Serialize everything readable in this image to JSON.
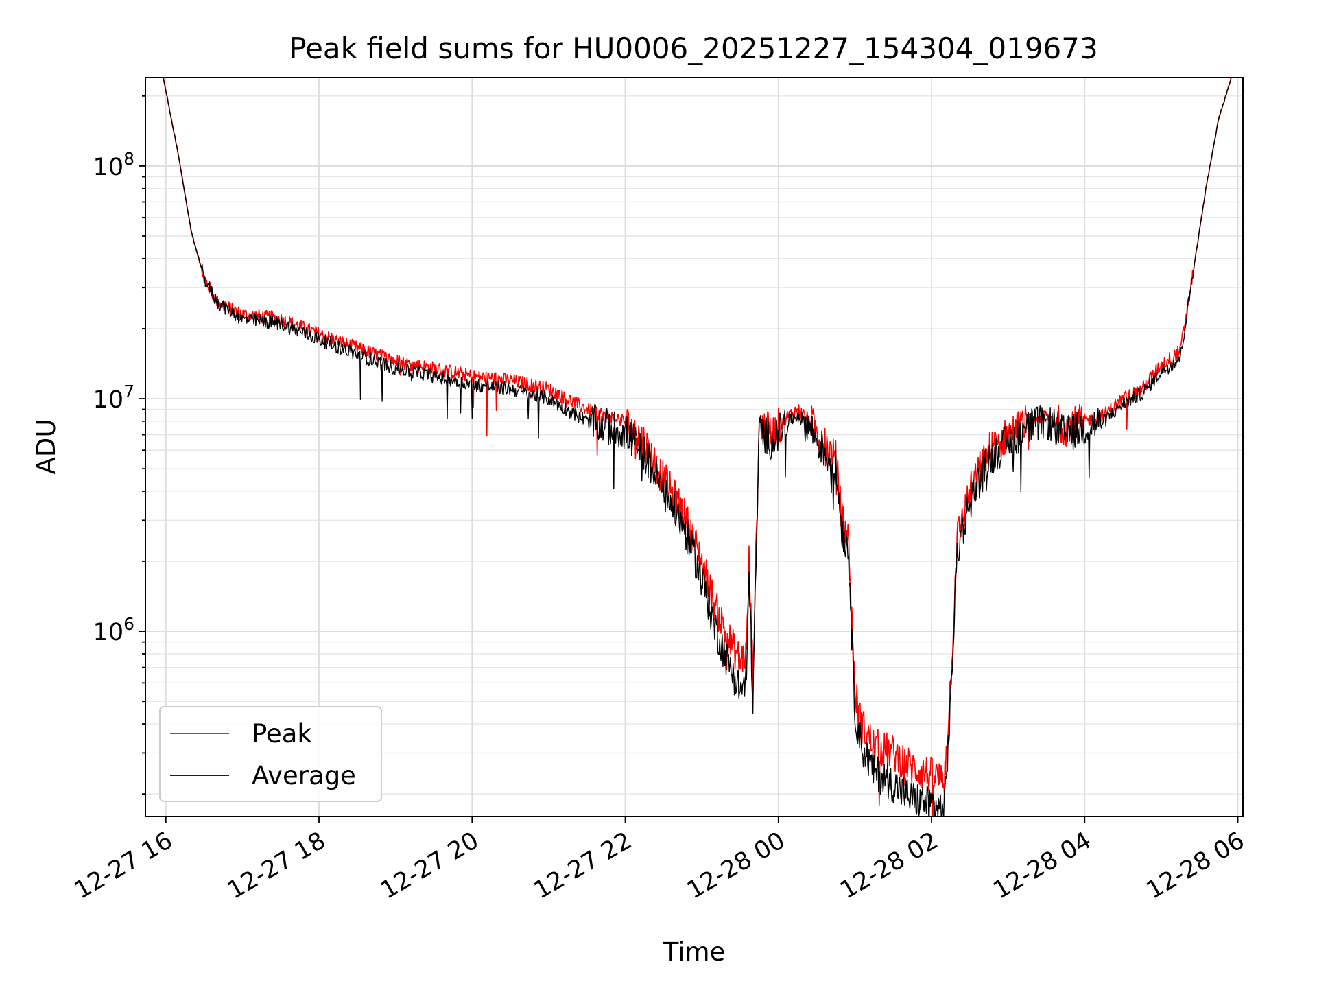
{
  "chart_data": {
    "type": "line",
    "title": "Peak field sums for HU0006_20251227_154304_019673",
    "xlabel": "Time",
    "ylabel": "ADU",
    "yscale": "log",
    "xlim": [
      "2025-12-27 15:44",
      "2025-12-28 06:04"
    ],
    "ylim": [
      160000,
      240000000
    ],
    "grid": true,
    "legend": "lower-left",
    "x_ticks": [
      "12-27 16",
      "12-27 18",
      "12-27 20",
      "12-27 22",
      "12-28 00",
      "12-28 02",
      "12-28 04",
      "12-28 06"
    ],
    "y_ticks": [
      "10^6",
      "10^7",
      "10^8"
    ],
    "series": [
      {
        "name": "Peak",
        "color": "#ff0000",
        "x": [
          "2025-12-27 15:58",
          "2025-12-27 16:10",
          "2025-12-27 16:20",
          "2025-12-27 16:30",
          "2025-12-27 16:40",
          "2025-12-27 17:00",
          "2025-12-27 17:30",
          "2025-12-27 18:00",
          "2025-12-27 18:30",
          "2025-12-27 19:00",
          "2025-12-27 19:30",
          "2025-12-27 20:00",
          "2025-12-27 20:30",
          "2025-12-27 21:00",
          "2025-12-27 21:30",
          "2025-12-27 22:00",
          "2025-12-27 22:15",
          "2025-12-27 22:30",
          "2025-12-27 22:45",
          "2025-12-27 23:00",
          "2025-12-27 23:10",
          "2025-12-27 23:20",
          "2025-12-27 23:30",
          "2025-12-27 23:35",
          "2025-12-27 23:37",
          "2025-12-27 23:40",
          "2025-12-27 23:45",
          "2025-12-27 23:55",
          "2025-12-28 00:05",
          "2025-12-28 00:15",
          "2025-12-28 00:25",
          "2025-12-28 00:35",
          "2025-12-28 00:45",
          "2025-12-28 00:50",
          "2025-12-28 00:55",
          "2025-12-28 01:00",
          "2025-12-28 01:05",
          "2025-12-28 01:15",
          "2025-12-28 01:30",
          "2025-12-28 01:45",
          "2025-12-28 02:00",
          "2025-12-28 02:10",
          "2025-12-28 02:15",
          "2025-12-28 02:20",
          "2025-12-28 02:30",
          "2025-12-28 02:45",
          "2025-12-28 03:00",
          "2025-12-28 03:15",
          "2025-12-28 03:30",
          "2025-12-28 03:45",
          "2025-12-28 04:00",
          "2025-12-28 04:15",
          "2025-12-28 04:30",
          "2025-12-28 04:45",
          "2025-12-28 05:00",
          "2025-12-28 05:15",
          "2025-12-28 05:25",
          "2025-12-28 05:35",
          "2025-12-28 05:45",
          "2025-12-28 05:55"
        ],
        "values": [
          240000000,
          110000000,
          52000000,
          33000000,
          26000000,
          23000000,
          22000000,
          19000000,
          16500000,
          14500000,
          13500000,
          12500000,
          12000000,
          11000000,
          9000000,
          8000000,
          6500000,
          4500000,
          3300000,
          2000000,
          1300000,
          950000,
          750000,
          800000,
          2000000,
          650000,
          8000000,
          7000000,
          8200000,
          9000000,
          8000000,
          6500000,
          5500000,
          3000000,
          2500000,
          550000,
          400000,
          320000,
          300000,
          260000,
          240000,
          230000,
          600000,
          2500000,
          4000000,
          6000000,
          7000000,
          8000000,
          8500000,
          7500000,
          8000000,
          8500000,
          10000000,
          11000000,
          14000000,
          16000000,
          35000000,
          80000000,
          160000000,
          240000000
        ]
      },
      {
        "name": "Average",
        "color": "#000000",
        "x": [
          "2025-12-27 15:58",
          "2025-12-27 16:10",
          "2025-12-27 16:20",
          "2025-12-27 16:30",
          "2025-12-27 16:40",
          "2025-12-27 17:00",
          "2025-12-27 17:30",
          "2025-12-27 18:00",
          "2025-12-27 18:30",
          "2025-12-27 19:00",
          "2025-12-27 19:30",
          "2025-12-27 20:00",
          "2025-12-27 20:30",
          "2025-12-27 21:00",
          "2025-12-27 21:30",
          "2025-12-27 22:00",
          "2025-12-27 22:15",
          "2025-12-27 22:30",
          "2025-12-27 22:45",
          "2025-12-27 23:00",
          "2025-12-27 23:10",
          "2025-12-27 23:20",
          "2025-12-27 23:30",
          "2025-12-27 23:35",
          "2025-12-27 23:37",
          "2025-12-27 23:40",
          "2025-12-27 23:45",
          "2025-12-27 23:55",
          "2025-12-28 00:05",
          "2025-12-28 00:15",
          "2025-12-28 00:25",
          "2025-12-28 00:35",
          "2025-12-28 00:45",
          "2025-12-28 00:50",
          "2025-12-28 00:55",
          "2025-12-28 01:00",
          "2025-12-28 01:05",
          "2025-12-28 01:15",
          "2025-12-28 01:30",
          "2025-12-28 01:45",
          "2025-12-28 02:00",
          "2025-12-28 02:10",
          "2025-12-28 02:15",
          "2025-12-28 02:20",
          "2025-12-28 02:30",
          "2025-12-28 02:45",
          "2025-12-28 03:00",
          "2025-12-28 03:15",
          "2025-12-28 03:30",
          "2025-12-28 03:45",
          "2025-12-28 04:00",
          "2025-12-28 04:15",
          "2025-12-28 04:30",
          "2025-12-28 04:45",
          "2025-12-28 05:00",
          "2025-12-28 05:15",
          "2025-12-28 05:25",
          "2025-12-28 05:35",
          "2025-12-28 05:45",
          "2025-12-28 05:55"
        ],
        "values": [
          240000000,
          110000000,
          52000000,
          33000000,
          26000000,
          22000000,
          21000000,
          18000000,
          15500000,
          13500000,
          12500000,
          11500000,
          11000000,
          10000000,
          8000000,
          7200000,
          5800000,
          4000000,
          2900000,
          1700000,
          1050000,
          750000,
          560000,
          600000,
          1800000,
          500000,
          7500000,
          6500000,
          7800000,
          8500000,
          7500000,
          6000000,
          5000000,
          2700000,
          2200000,
          450000,
          320000,
          250000,
          220000,
          190000,
          180000,
          170000,
          500000,
          2200000,
          3600000,
          5500000,
          6500000,
          7500000,
          8000000,
          7000000,
          7500000,
          8000000,
          9500000,
          10500000,
          13000000,
          15000000,
          35000000,
          80000000,
          160000000,
          240000000
        ]
      }
    ]
  }
}
